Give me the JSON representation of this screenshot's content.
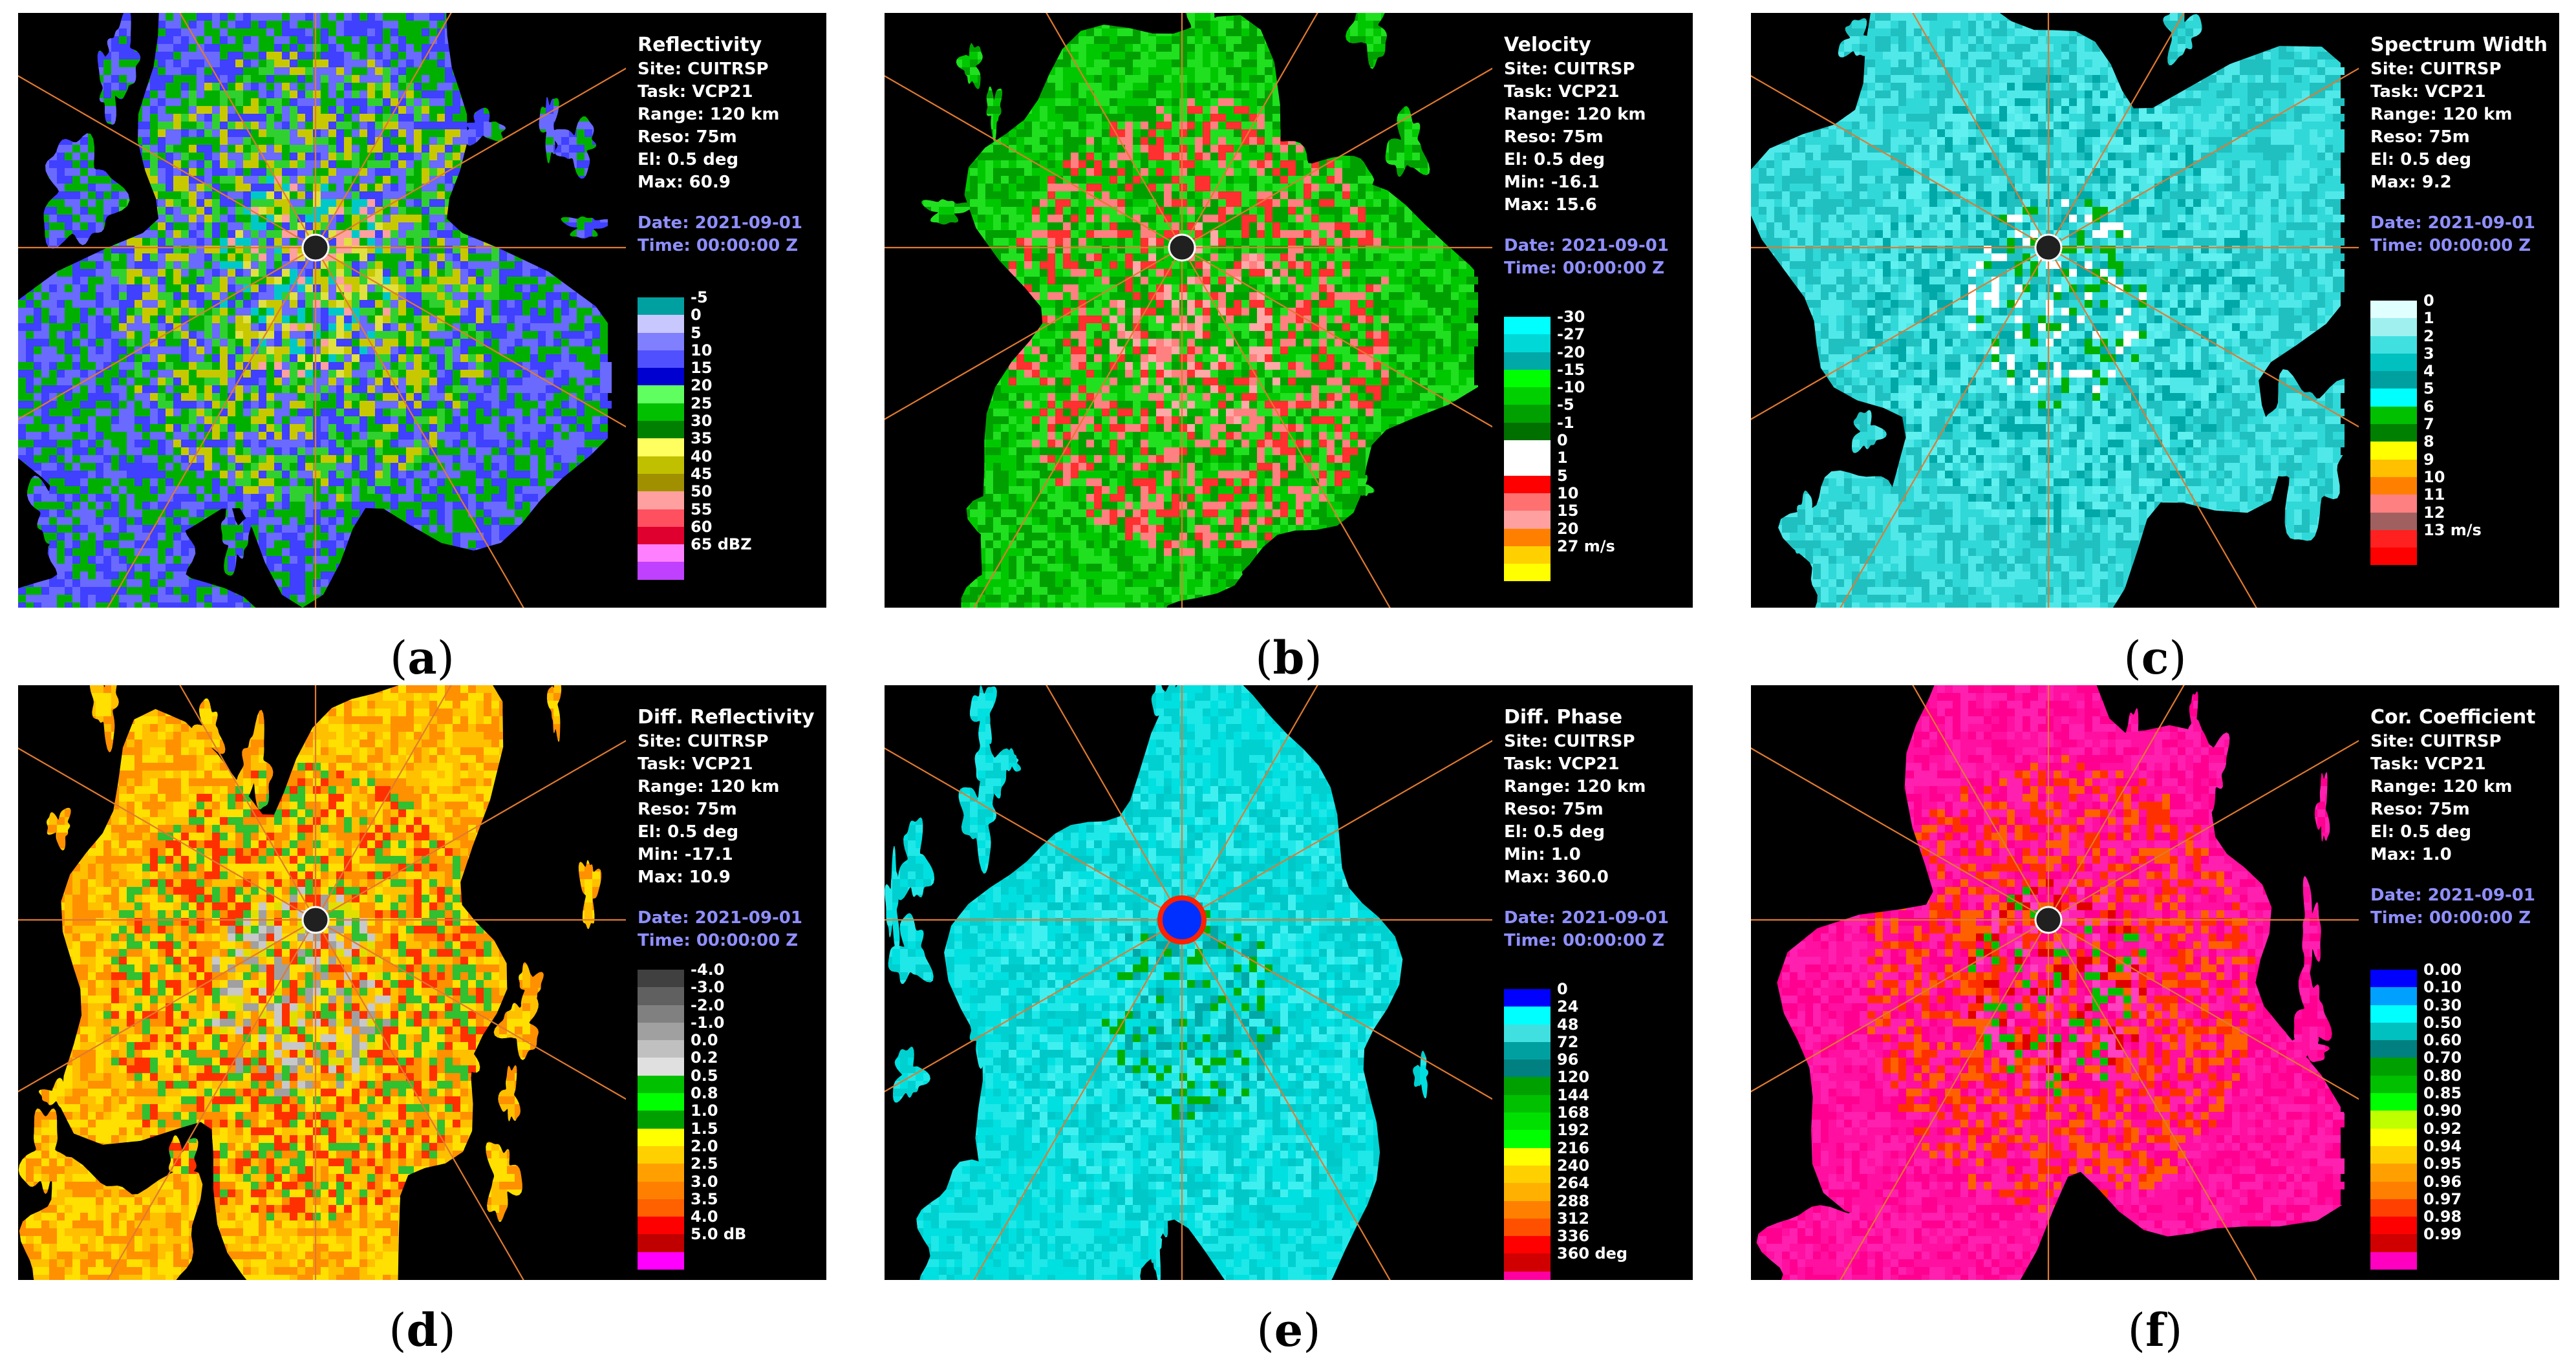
{
  "panels": [
    {
      "id": "a",
      "caption": "a",
      "title": "Reflectivity",
      "info": [
        "Site: CUITRSP",
        "Task: VCP21",
        "Range: 120 km",
        "Reso: 75m",
        "El: 0.5 deg",
        "Max: 60.9"
      ],
      "date": "Date: 2021-09-01",
      "time": "Time: 00:00:00 Z",
      "legend": [
        {
          "label": "-5",
          "color": "#00a0a0"
        },
        {
          "label": "0",
          "color": "#c8c8ff"
        },
        {
          "label": "5",
          "color": "#8080ff"
        },
        {
          "label": "10",
          "color": "#5050ff"
        },
        {
          "label": "15",
          "color": "#0000d0"
        },
        {
          "label": "20",
          "color": "#60ff60"
        },
        {
          "label": "25",
          "color": "#00c000"
        },
        {
          "label": "30",
          "color": "#008000"
        },
        {
          "label": "35",
          "color": "#ffff60"
        },
        {
          "label": "40",
          "color": "#c0c000"
        },
        {
          "label": "45",
          "color": "#a09000"
        },
        {
          "label": "50",
          "color": "#ffa0a0"
        },
        {
          "label": "55",
          "color": "#ff5060"
        },
        {
          "label": "60",
          "color": "#e00030"
        },
        {
          "label": "65 dBZ",
          "color": "#ff80ff"
        },
        {
          "label": "",
          "color": "#c040ff"
        }
      ],
      "palette": [
        "#6a6aff",
        "#4040ff",
        "#00b000",
        "#30d030",
        "#c8c800",
        "#e0e040",
        "#ffa0a0",
        "#00c8c8"
      ]
    },
    {
      "id": "b",
      "caption": "b",
      "title": "Velocity",
      "info": [
        "Site: CUITRSP",
        "Task: VCP21",
        "Range: 120 km",
        "Reso: 75m",
        "El: 0.5 deg",
        "Min: -16.1",
        "Max: 15.6"
      ],
      "date": "Date: 2021-09-01",
      "time": "Time: 00:00:00 Z",
      "legend": [
        {
          "label": "-30",
          "color": "#00ffff"
        },
        {
          "label": "-27",
          "color": "#00d8d8"
        },
        {
          "label": "-20",
          "color": "#00a8a8"
        },
        {
          "label": "-15",
          "color": "#00ff00"
        },
        {
          "label": "-10",
          "color": "#00d000"
        },
        {
          "label": "-5",
          "color": "#00a000"
        },
        {
          "label": "-1",
          "color": "#007000"
        },
        {
          "label": "0",
          "color": "#ffffff"
        },
        {
          "label": "1",
          "color": "#ffffff"
        },
        {
          "label": "5",
          "color": "#ff0000"
        },
        {
          "label": "10",
          "color": "#ff7070"
        },
        {
          "label": "15",
          "color": "#ffa0a0"
        },
        {
          "label": "20",
          "color": "#ff8000"
        },
        {
          "label": "27 m/s",
          "color": "#ffd000"
        },
        {
          "label": "",
          "color": "#ffff00"
        }
      ],
      "palette": [
        "#00c800",
        "#00a000",
        "#20e020",
        "#ff3030",
        "#ff8080",
        "#ffa8a8",
        "#00b000"
      ]
    },
    {
      "id": "c",
      "caption": "c",
      "title": "Spectrum Width",
      "info": [
        "Site: CUITRSP",
        "Task: VCP21",
        "Range: 120 km",
        "Reso: 75m",
        "El: 0.5 deg",
        "Max: 9.2"
      ],
      "date": "Date: 2021-09-01",
      "time": "Time: 00:00:00 Z",
      "legend": [
        {
          "label": "0",
          "color": "#e0ffff"
        },
        {
          "label": "1",
          "color": "#a0f0f0"
        },
        {
          "label": "2",
          "color": "#40e0e0"
        },
        {
          "label": "3",
          "color": "#00c0c0"
        },
        {
          "label": "4",
          "color": "#00a0a0"
        },
        {
          "label": "5",
          "color": "#00ffff"
        },
        {
          "label": "6",
          "color": "#00c000"
        },
        {
          "label": "7",
          "color": "#008000"
        },
        {
          "label": "8",
          "color": "#ffff00"
        },
        {
          "label": "9",
          "color": "#ffc000"
        },
        {
          "label": "10",
          "color": "#ff8000"
        },
        {
          "label": "11",
          "color": "#ff8080"
        },
        {
          "label": "12",
          "color": "#a06060"
        },
        {
          "label": "13 m/s",
          "color": "#ff2020"
        },
        {
          "label": "",
          "color": "#ff0000"
        }
      ],
      "palette": [
        "#30d8d8",
        "#50e8e8",
        "#20c0c0",
        "#60f0f0",
        "#00a8a8",
        "#ffffff",
        "#00b000"
      ]
    },
    {
      "id": "d",
      "caption": "d",
      "title": "Diff. Reflectivity",
      "info": [
        "Site: CUITRSP",
        "Task: VCP21",
        "Range: 120 km",
        "Reso: 75m",
        "El: 0.5 deg",
        "Min: -17.1",
        "Max: 10.9"
      ],
      "date": "Date: 2021-09-01",
      "time": "Time: 00:00:00 Z",
      "legend": [
        {
          "label": "-4.0",
          "color": "#404040"
        },
        {
          "label": "-3.0",
          "color": "#606060"
        },
        {
          "label": "-2.0",
          "color": "#808080"
        },
        {
          "label": "-1.0",
          "color": "#a0a0a0"
        },
        {
          "label": "0.0",
          "color": "#c0c0c0"
        },
        {
          "label": "0.2",
          "color": "#e0e0e0"
        },
        {
          "label": "0.5",
          "color": "#00c000"
        },
        {
          "label": "0.8",
          "color": "#00ff00"
        },
        {
          "label": "1.0",
          "color": "#00a000"
        },
        {
          "label": "1.5",
          "color": "#ffff00"
        },
        {
          "label": "2.0",
          "color": "#ffd000"
        },
        {
          "label": "2.5",
          "color": "#ffa000"
        },
        {
          "label": "3.0",
          "color": "#ff8000"
        },
        {
          "label": "3.5",
          "color": "#ff6000"
        },
        {
          "label": "4.0",
          "color": "#ff0000"
        },
        {
          "label": "5.0 dB",
          "color": "#c00000"
        },
        {
          "label": "",
          "color": "#ff00ff"
        }
      ],
      "palette": [
        "#ffc000",
        "#ff9000",
        "#ffe000",
        "#ff3000",
        "#30c030",
        "#a0a0a0",
        "#c8c8c8",
        "#e0e000"
      ]
    },
    {
      "id": "e",
      "caption": "e",
      "title": "Diff. Phase",
      "info": [
        "Site: CUITRSP",
        "Task: VCP21",
        "Range: 120 km",
        "Reso: 75m",
        "El: 0.5 deg",
        "Min: 1.0",
        "Max: 360.0"
      ],
      "date": "Date: 2021-09-01",
      "time": "Time: 00:00:00 Z",
      "legend": [
        {
          "label": "0",
          "color": "#0000ff"
        },
        {
          "label": "24",
          "color": "#00ffff"
        },
        {
          "label": "48",
          "color": "#40e0e0"
        },
        {
          "label": "72",
          "color": "#00a0a0"
        },
        {
          "label": "96",
          "color": "#008080"
        },
        {
          "label": "120",
          "color": "#00a000"
        },
        {
          "label": "144",
          "color": "#00c000"
        },
        {
          "label": "168",
          "color": "#00e000"
        },
        {
          "label": "192",
          "color": "#00ff00"
        },
        {
          "label": "216",
          "color": "#ffff00"
        },
        {
          "label": "240",
          "color": "#ffd000"
        },
        {
          "label": "264",
          "color": "#ffb000"
        },
        {
          "label": "288",
          "color": "#ff8000"
        },
        {
          "label": "312",
          "color": "#ff5000"
        },
        {
          "label": "336",
          "color": "#ff0000"
        },
        {
          "label": "360 deg",
          "color": "#d00000"
        },
        {
          "label": "",
          "color": "#ff00a0"
        }
      ],
      "palette": [
        "#00e0e0",
        "#20e8e8",
        "#00d0d0",
        "#40f0f0",
        "#00c8c8",
        "#00a8a8",
        "#00b000"
      ]
    },
    {
      "id": "f",
      "caption": "f",
      "title": "Cor. Coefficient",
      "info": [
        "Site: CUITRSP",
        "Task: VCP21",
        "Range: 120 km",
        "Reso: 75m",
        "El: 0.5 deg",
        "Max: 1.0"
      ],
      "date": "Date: 2021-09-01",
      "time": "Time: 00:00:00 Z",
      "legend": [
        {
          "label": "0.00",
          "color": "#0000ff"
        },
        {
          "label": "0.10",
          "color": "#00a0ff"
        },
        {
          "label": "0.30",
          "color": "#00ffff"
        },
        {
          "label": "0.50",
          "color": "#00c0c0"
        },
        {
          "label": "0.60",
          "color": "#008080"
        },
        {
          "label": "0.70",
          "color": "#00a000"
        },
        {
          "label": "0.80",
          "color": "#00c000"
        },
        {
          "label": "0.85",
          "color": "#00ff00"
        },
        {
          "label": "0.90",
          "color": "#c0ff00"
        },
        {
          "label": "0.92",
          "color": "#ffff00"
        },
        {
          "label": "0.94",
          "color": "#ffd000"
        },
        {
          "label": "0.95",
          "color": "#ffa000"
        },
        {
          "label": "0.96",
          "color": "#ff8000"
        },
        {
          "label": "0.97",
          "color": "#ff4000"
        },
        {
          "label": "0.98",
          "color": "#ff0000"
        },
        {
          "label": "0.99",
          "color": "#d00000"
        },
        {
          "label": "",
          "color": "#ff00c0"
        }
      ],
      "palette": [
        "#ff10a0",
        "#ff20b0",
        "#ff0090",
        "#ff3000",
        "#ff6000",
        "#00c000",
        "#ff40c0",
        "#e00000"
      ]
    }
  ]
}
